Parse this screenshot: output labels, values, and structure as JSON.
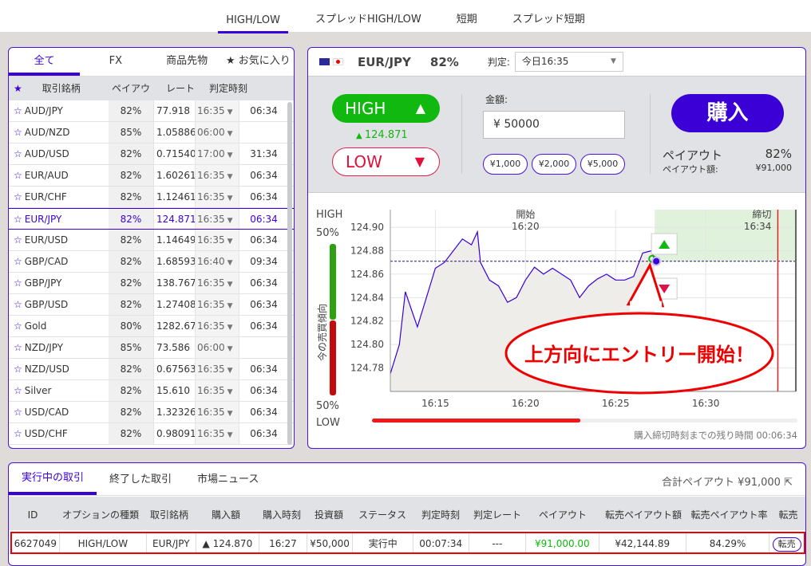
{
  "topnav": {
    "tabs": [
      {
        "label": "HIGH/LOW",
        "active": true
      },
      {
        "label": "スプレッドHIGH/LOW"
      },
      {
        "label": "短期"
      },
      {
        "label": "スプレッド短期"
      }
    ]
  },
  "left": {
    "tabs": [
      {
        "label": "全て",
        "active": true
      },
      {
        "label": "FX"
      },
      {
        "label": "商品先物"
      },
      {
        "label": "★ お気に入り"
      }
    ],
    "headers": {
      "star": "★",
      "symbol": "取引銘柄",
      "payout": "ペイアウト",
      "rate": "レート",
      "expiry": "判定時刻"
    },
    "rows": [
      {
        "symbol": "AUD/JPY",
        "payout": "82%",
        "rate": "77.918",
        "expiry": "16:35",
        "remaining": "06:34"
      },
      {
        "symbol": "AUD/NZD",
        "payout": "85%",
        "rate": "1.05886",
        "expiry": "06:00",
        "remaining": ""
      },
      {
        "symbol": "AUD/USD",
        "payout": "82%",
        "rate": "0.71540",
        "expiry": "17:00",
        "remaining": "31:34"
      },
      {
        "symbol": "EUR/AUD",
        "payout": "82%",
        "rate": "1.60261",
        "expiry": "16:35",
        "remaining": "06:34"
      },
      {
        "symbol": "EUR/CHF",
        "payout": "82%",
        "rate": "1.12461",
        "expiry": "16:35",
        "remaining": "06:34"
      },
      {
        "symbol": "EUR/JPY",
        "payout": "82%",
        "rate": "124.871",
        "expiry": "16:35",
        "remaining": "06:34",
        "selected": true
      },
      {
        "symbol": "EUR/USD",
        "payout": "82%",
        "rate": "1.14649",
        "expiry": "16:35",
        "remaining": "06:34"
      },
      {
        "symbol": "GBP/CAD",
        "payout": "82%",
        "rate": "1.68593",
        "expiry": "16:40",
        "remaining": "09:34"
      },
      {
        "symbol": "GBP/JPY",
        "payout": "82%",
        "rate": "138.767",
        "expiry": "16:35",
        "remaining": "06:34"
      },
      {
        "symbol": "GBP/USD",
        "payout": "82%",
        "rate": "1.27408",
        "expiry": "16:35",
        "remaining": "06:34"
      },
      {
        "symbol": "Gold",
        "payout": "80%",
        "rate": "1282.67",
        "expiry": "16:35",
        "remaining": "06:34"
      },
      {
        "symbol": "NZD/JPY",
        "payout": "85%",
        "rate": "73.586",
        "expiry": "06:00",
        "remaining": ""
      },
      {
        "symbol": "NZD/USD",
        "payout": "82%",
        "rate": "0.67563",
        "expiry": "16:35",
        "remaining": "06:34"
      },
      {
        "symbol": "Silver",
        "payout": "82%",
        "rate": "15.610",
        "expiry": "16:35",
        "remaining": "06:34"
      },
      {
        "symbol": "USD/CAD",
        "payout": "82%",
        "rate": "1.32326",
        "expiry": "16:35",
        "remaining": "06:34"
      },
      {
        "symbol": "USD/CHF",
        "payout": "82%",
        "rate": "0.98091",
        "expiry": "16:35",
        "remaining": "06:34"
      }
    ]
  },
  "right": {
    "symbol": "EUR/JPY",
    "payout": "82%",
    "expiry_label": "判定:",
    "expiry_value": "今日16:35",
    "high_label": "HIGH",
    "low_label": "LOW",
    "current_rate": "124.871",
    "amount_label": "金額:",
    "amount_value": "¥ 50000",
    "chips": [
      "¥1,000",
      "¥2,000",
      "¥5,000"
    ],
    "buy_label": "購入",
    "payout_label": "ペイアウト",
    "payout_value": "82%",
    "payout_amount_label": "ペイアウト額:",
    "payout_amount_value": "¥91,000",
    "sentiment": {
      "high_label": "HIGH",
      "low_label": "LOW",
      "high_pct": "50%",
      "low_pct": "50%",
      "title": "今の売買傾向",
      "high_fraction": 0.5
    },
    "remaining_label": "購入締切時刻までの残り時間 00:06:34",
    "remaining_fraction": 0.49,
    "callout": "上方向にエントリー開始！",
    "colors": {
      "accent": "#3a00d6",
      "high": "#11b80f",
      "low": "#e0103a"
    }
  },
  "chart_data": {
    "type": "line",
    "yticks": [
      "124.90",
      "124.88",
      "124.86",
      "124.84",
      "124.82",
      "124.80",
      "124.78"
    ],
    "xticks": [
      "16:15",
      "16:20",
      "16:25",
      "16:30"
    ],
    "ylim": [
      124.76,
      124.915
    ],
    "xlim": [
      "16:12:30",
      "16:35:00"
    ],
    "annotations": {
      "start_label": "開始",
      "start_time": "16:20",
      "close_label": "締切",
      "close_time": "16:34",
      "entry_rate": 124.871,
      "entry_time": "16:27:10"
    },
    "series": [
      {
        "x": [
          "16:12:30",
          "16:13:00",
          "16:13:20",
          "16:13:40",
          "16:14:00",
          "16:14:30",
          "16:15:00",
          "16:15:30",
          "16:16:00",
          "16:16:30",
          "16:17:00",
          "16:17:20",
          "16:17:30",
          "16:18:00",
          "16:18:30",
          "16:19:00",
          "16:19:30",
          "16:20:00",
          "16:20:30",
          "16:21:00",
          "16:21:30",
          "16:22:00",
          "16:22:30",
          "16:23:00",
          "16:23:30",
          "16:24:00",
          "16:24:30",
          "16:25:00",
          "16:25:30",
          "16:26:00",
          "16:26:30",
          "16:27:00",
          "16:27:10"
        ],
        "y": [
          124.775,
          124.8,
          124.845,
          124.83,
          124.815,
          124.84,
          124.865,
          124.87,
          124.88,
          124.89,
          124.885,
          124.896,
          124.87,
          124.855,
          124.85,
          124.836,
          124.84,
          124.855,
          124.866,
          124.86,
          124.865,
          124.86,
          124.855,
          124.84,
          124.85,
          124.856,
          124.86,
          124.855,
          124.855,
          124.858,
          124.878,
          124.88,
          124.871
        ]
      }
    ]
  },
  "bottom": {
    "tabs": [
      {
        "label": "実行中の取引",
        "active": true
      },
      {
        "label": "終了した取引"
      },
      {
        "label": "市場ニュース"
      }
    ],
    "total": "合計ペイアウト ¥91,000",
    "headers": [
      "ID",
      "オプションの種類",
      "取引銘柄",
      "購入額",
      "購入時刻",
      "投資額",
      "ステータス",
      "判定時刻",
      "判定レート",
      "ペイアウト",
      "転売ペイアウト額",
      "転売ペイアウト率",
      "転売"
    ],
    "row": {
      "id": "6627049",
      "type": "HIGH/LOW",
      "symbol": "EUR/JPY",
      "rate": "▲ 124.870",
      "time": "16:27",
      "invest": "¥50,000",
      "status": "実行中",
      "expiry": "00:07:34",
      "exp_rate": "---",
      "payout": "¥91,000.00",
      "resell_amount": "¥42,144.89",
      "resell_rate": "84.29%",
      "resell_button": "転売"
    }
  }
}
